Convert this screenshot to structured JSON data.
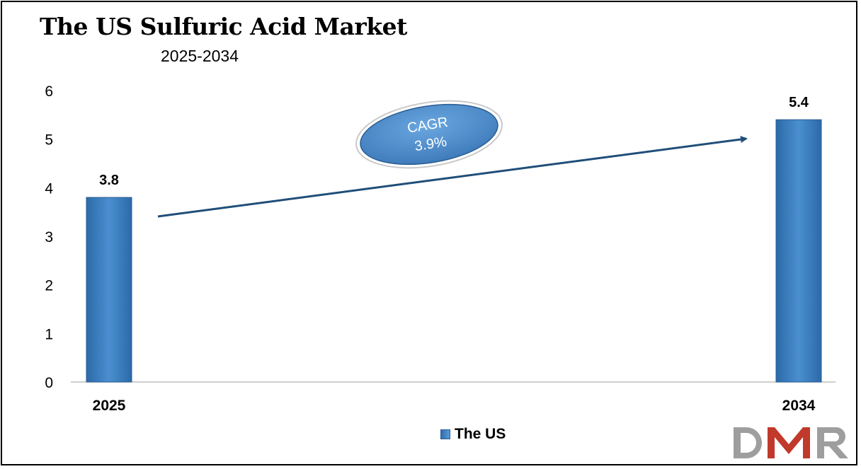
{
  "title": "The US Sulfuric Acid Market",
  "subtitle": "2025-2034",
  "chart_data": {
    "type": "bar",
    "categories": [
      "2025",
      "2034"
    ],
    "series": [
      {
        "name": "The US",
        "values": [
          3.8,
          5.4
        ]
      }
    ],
    "data_labels": [
      "3.8",
      "5.4"
    ],
    "ylim": [
      0,
      6
    ],
    "yticks": [
      "0",
      "1",
      "2",
      "3",
      "4",
      "5",
      "6"
    ],
    "xlabel": "",
    "ylabel": "",
    "grid": false,
    "legend_position": "bottom",
    "bar_color": "#3b7cc0",
    "annotation": {
      "line1": "CAGR",
      "line2": "3.9%"
    }
  },
  "legend": {
    "label": "The US"
  },
  "logo": {
    "text": "DMR",
    "colors": {
      "d": "#a0a0a0",
      "m": "#c0392b",
      "r": "#a0a0a0"
    }
  }
}
